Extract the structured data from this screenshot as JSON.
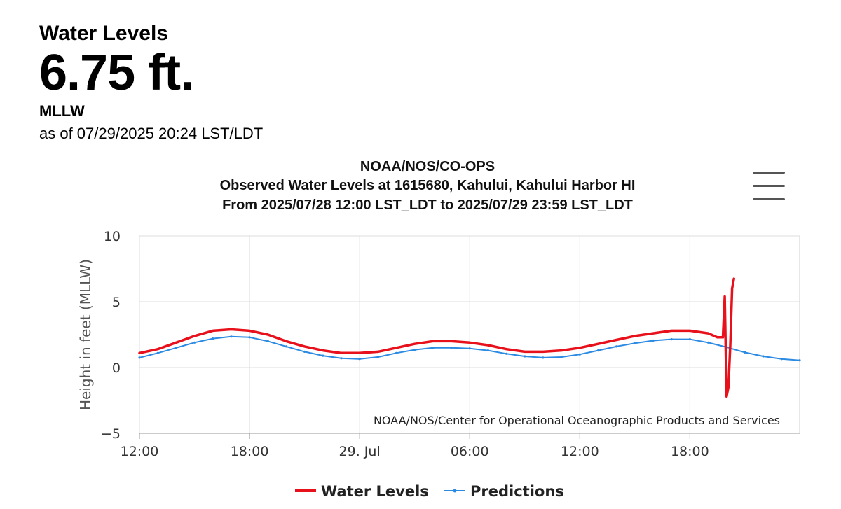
{
  "header": {
    "title": "Water Levels",
    "value": "6.75 ft.",
    "datum": "MLLW",
    "as_of": "as of 07/29/2025 20:24 LST/LDT"
  },
  "menu_icon": "hamburger-menu-icon",
  "chart_data": {
    "type": "line",
    "title": "NOAA/NOS/CO-OPS",
    "subtitle": "Observed Water Levels at 1615680, Kahului, Kahului Harbor HI",
    "subtitle2": "From 2025/07/28 12:00 LST_LDT to 2025/07/29 23:59 LST_LDT",
    "ylabel": "Height in feet (MLLW)",
    "ylim": [
      -5,
      10
    ],
    "yticks": [
      10,
      5,
      0,
      -5
    ],
    "yticklabels": [
      "10",
      "5",
      "0",
      "−5"
    ],
    "xlim": [
      "2025-07-28 12:00",
      "2025-07-29 23:59"
    ],
    "xticks": [
      "2025-07-28 12:00",
      "2025-07-28 18:00",
      "2025-07-29 00:00",
      "2025-07-29 06:00",
      "2025-07-29 12:00",
      "2025-07-29 18:00"
    ],
    "xticklabels": [
      "12:00",
      "18:00",
      "29. Jul",
      "06:00",
      "12:00",
      "18:00"
    ],
    "grid": true,
    "credit": "NOAA/NOS/Center for Operational Oceanographic Products and Services",
    "legend": "bottom",
    "colors": {
      "water_levels": "#e8101a",
      "predictions": "#2b8ae2"
    },
    "series": [
      {
        "name": "Water Levels",
        "x": [
          "2025-07-28 12:00",
          "2025-07-28 13:00",
          "2025-07-28 14:00",
          "2025-07-28 15:00",
          "2025-07-28 16:00",
          "2025-07-28 17:00",
          "2025-07-28 18:00",
          "2025-07-28 19:00",
          "2025-07-28 20:00",
          "2025-07-28 21:00",
          "2025-07-28 22:00",
          "2025-07-28 23:00",
          "2025-07-29 00:00",
          "2025-07-29 01:00",
          "2025-07-29 02:00",
          "2025-07-29 03:00",
          "2025-07-29 04:00",
          "2025-07-29 05:00",
          "2025-07-29 06:00",
          "2025-07-29 07:00",
          "2025-07-29 08:00",
          "2025-07-29 09:00",
          "2025-07-29 10:00",
          "2025-07-29 11:00",
          "2025-07-29 12:00",
          "2025-07-29 13:00",
          "2025-07-29 14:00",
          "2025-07-29 15:00",
          "2025-07-29 16:00",
          "2025-07-29 17:00",
          "2025-07-29 18:00",
          "2025-07-29 19:00",
          "2025-07-29 19:30",
          "2025-07-29 19:48",
          "2025-07-29 19:54",
          "2025-07-29 20:00",
          "2025-07-29 20:06",
          "2025-07-29 20:12",
          "2025-07-29 20:18",
          "2025-07-29 20:24"
        ],
        "values": [
          1.1,
          1.4,
          1.9,
          2.4,
          2.8,
          2.9,
          2.8,
          2.5,
          2.0,
          1.6,
          1.3,
          1.1,
          1.1,
          1.2,
          1.5,
          1.8,
          2.0,
          2.0,
          1.9,
          1.7,
          1.4,
          1.2,
          1.2,
          1.3,
          1.5,
          1.8,
          2.1,
          2.4,
          2.6,
          2.8,
          2.8,
          2.6,
          2.3,
          2.3,
          5.4,
          -2.2,
          -1.5,
          1.7,
          6.0,
          6.75
        ]
      },
      {
        "name": "Predictions",
        "x": [
          "2025-07-28 12:00",
          "2025-07-28 13:00",
          "2025-07-28 14:00",
          "2025-07-28 15:00",
          "2025-07-28 16:00",
          "2025-07-28 17:00",
          "2025-07-28 18:00",
          "2025-07-28 19:00",
          "2025-07-28 20:00",
          "2025-07-28 21:00",
          "2025-07-28 22:00",
          "2025-07-28 23:00",
          "2025-07-29 00:00",
          "2025-07-29 01:00",
          "2025-07-29 02:00",
          "2025-07-29 03:00",
          "2025-07-29 04:00",
          "2025-07-29 05:00",
          "2025-07-29 06:00",
          "2025-07-29 07:00",
          "2025-07-29 08:00",
          "2025-07-29 09:00",
          "2025-07-29 10:00",
          "2025-07-29 11:00",
          "2025-07-29 12:00",
          "2025-07-29 13:00",
          "2025-07-29 14:00",
          "2025-07-29 15:00",
          "2025-07-29 16:00",
          "2025-07-29 17:00",
          "2025-07-29 18:00",
          "2025-07-29 19:00",
          "2025-07-29 20:00",
          "2025-07-29 21:00",
          "2025-07-29 22:00",
          "2025-07-29 23:00",
          "2025-07-29 23:59"
        ],
        "values": [
          0.75,
          1.1,
          1.5,
          1.9,
          2.2,
          2.35,
          2.3,
          2.0,
          1.6,
          1.2,
          0.9,
          0.7,
          0.65,
          0.8,
          1.1,
          1.35,
          1.5,
          1.5,
          1.45,
          1.3,
          1.05,
          0.85,
          0.75,
          0.8,
          1.0,
          1.3,
          1.6,
          1.85,
          2.05,
          2.15,
          2.15,
          1.9,
          1.55,
          1.15,
          0.85,
          0.65,
          0.55
        ]
      }
    ]
  }
}
